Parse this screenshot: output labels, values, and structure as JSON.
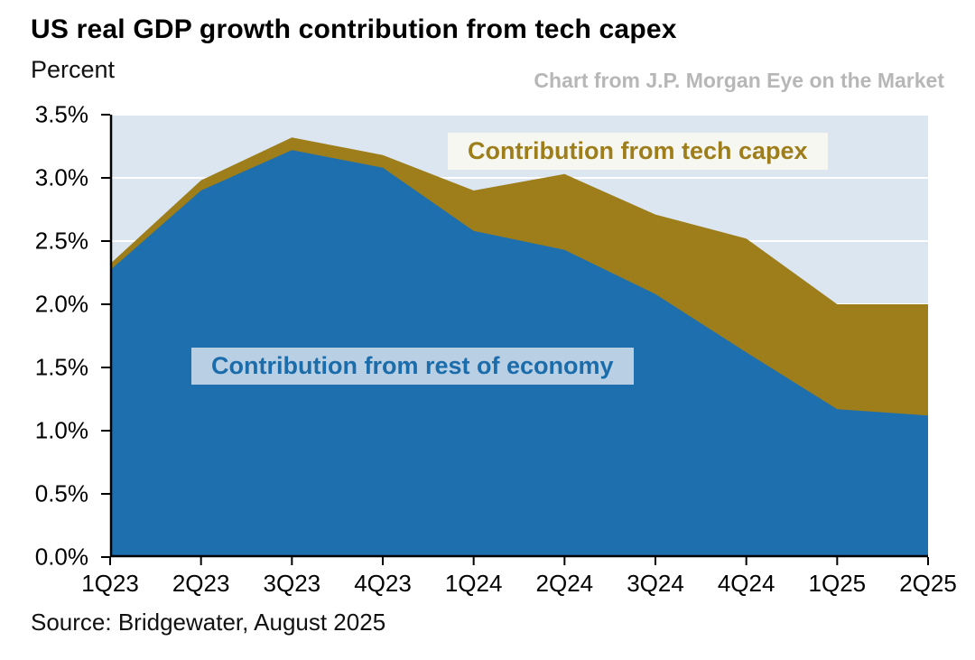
{
  "header": {
    "title": "US real GDP growth contribution from tech capex",
    "y_axis_title": "Percent",
    "credit": "Chart from J.P. Morgan Eye on the Market"
  },
  "labels": {
    "tech_capex": "Contribution from tech capex",
    "rest_of_economy": "Contribution from rest of economy"
  },
  "footer": {
    "source": "Source: Bridgewater, August 2025"
  },
  "colors": {
    "economy_blue": "#1e6fad",
    "tech_gold": "#9e7d1b",
    "plot_bg": "#dbe6f1",
    "gridline": "#ffffff",
    "axis": "#000000",
    "credit_gray": "#b7b7b7",
    "econ_label_bg": "#b9cfe4",
    "tech_label_bg": "#f7f6ef"
  },
  "chart_data": {
    "type": "area",
    "stacked": true,
    "title": "US real GDP growth contribution from tech capex",
    "xlabel": "",
    "ylabel": "Percent",
    "categories": [
      "1Q23",
      "2Q23",
      "3Q23",
      "4Q23",
      "1Q24",
      "2Q24",
      "3Q24",
      "4Q24",
      "1Q25",
      "2Q25"
    ],
    "series": [
      {
        "name": "Contribution from rest of economy",
        "color": "#1e6fad",
        "values": [
          2.27,
          2.9,
          3.22,
          3.08,
          2.58,
          2.43,
          2.08,
          1.62,
          1.17,
          1.12
        ]
      },
      {
        "name": "Contribution from tech capex",
        "color": "#9e7d1b",
        "values": [
          0.05,
          0.08,
          0.1,
          0.1,
          0.32,
          0.6,
          0.63,
          0.9,
          0.83,
          0.88
        ]
      }
    ],
    "totals": [
      2.32,
      2.98,
      3.32,
      3.18,
      2.9,
      3.03,
      2.71,
      2.52,
      2.0,
      2.0
    ],
    "ylim": [
      0,
      3.5
    ],
    "yticks": [
      {
        "value": 0.0,
        "label": "0.0%"
      },
      {
        "value": 0.5,
        "label": "0.5%"
      },
      {
        "value": 1.0,
        "label": "1.0%"
      },
      {
        "value": 1.5,
        "label": "1.5%"
      },
      {
        "value": 2.0,
        "label": "2.0%"
      },
      {
        "value": 2.5,
        "label": "2.5%"
      },
      {
        "value": 3.0,
        "label": "3.0%"
      },
      {
        "value": 3.5,
        "label": "3.5%"
      }
    ],
    "grid": "horizontal",
    "legend": "inline-labels"
  }
}
